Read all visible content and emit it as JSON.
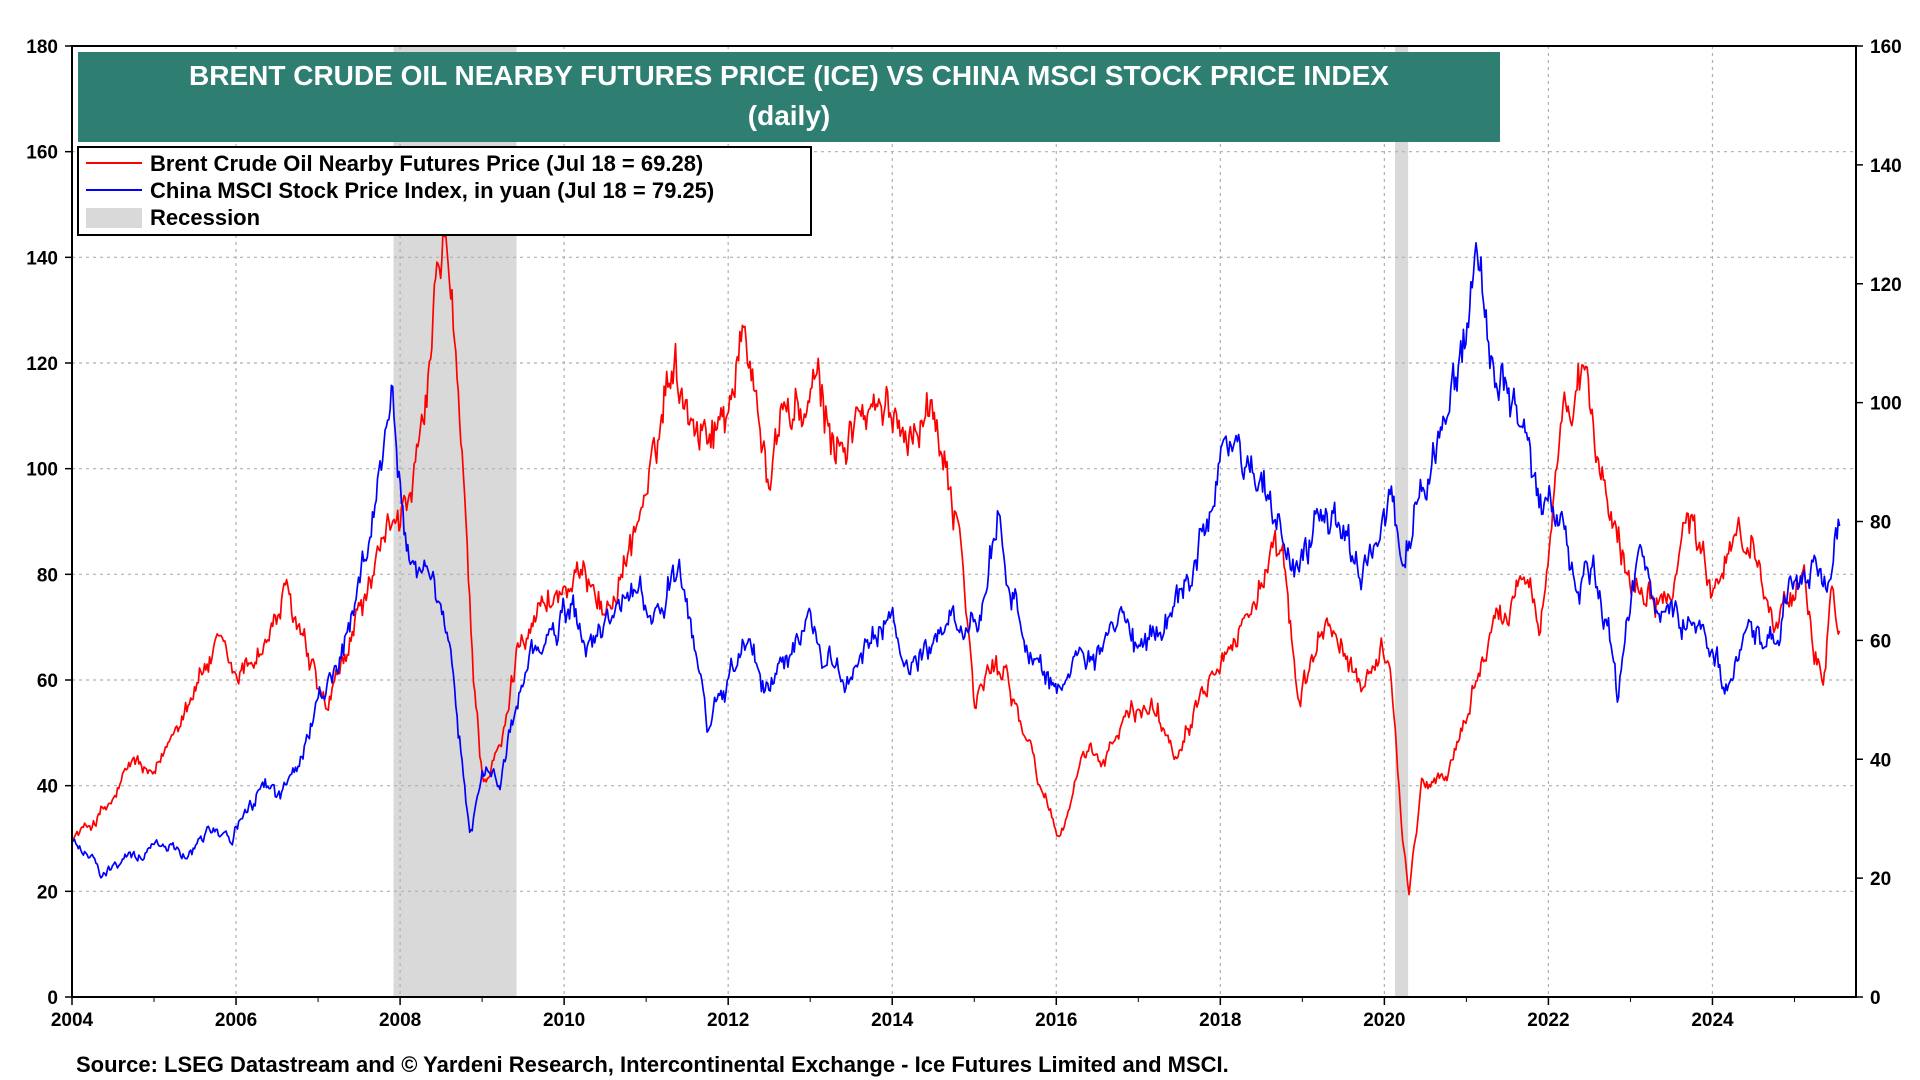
{
  "chart_data": {
    "type": "line",
    "title": "BRENT CRUDE OIL NEARBY FUTURES PRICE (ICE) VS CHINA MSCI STOCK PRICE INDEX",
    "subtitle": "(daily)",
    "source": "Source: LSEG Datastream and © Yardeni Research, Intercontinental Exchange - Ice Futures Limited and MSCI.",
    "x_ticks": [
      "2004",
      "2006",
      "2008",
      "2010",
      "2012",
      "2014",
      "2016",
      "2018",
      "2020",
      "2022",
      "2024"
    ],
    "xlim": [
      2004.0,
      2025.75
    ],
    "y_left": {
      "ylim": [
        0,
        180
      ],
      "ticks": [
        "0",
        "20",
        "40",
        "60",
        "80",
        "100",
        "120",
        "140",
        "160",
        "180"
      ]
    },
    "y_right": {
      "ylim": [
        0,
        160
      ],
      "ticks": [
        "0",
        "20",
        "40",
        "60",
        "80",
        "100",
        "120",
        "140",
        "160"
      ]
    },
    "grid": true,
    "legend": {
      "placement": "top-left",
      "entries": [
        "Brent Crude Oil Nearby Futures Price (Jul 18 = 69.28)",
        "China MSCI Stock Price Index, in yuan (Jul 18 = 79.25)",
        "Recession"
      ]
    },
    "colors": {
      "brent": "#ff0000",
      "china": "#0000ff",
      "recession": "#d9d9d9",
      "title_bg": "#2e7f72"
    },
    "recessions": [
      [
        2007.92,
        2009.42
      ],
      [
        2020.13,
        2020.29
      ]
    ],
    "series": [
      {
        "name": "Brent Crude Oil Nearby Futures Price (Jul 18 = 69.28)",
        "axis": "left",
        "points": [
          [
            2004.0,
            30
          ],
          [
            2004.25,
            33
          ],
          [
            2004.5,
            37
          ],
          [
            2004.75,
            45
          ],
          [
            2005.0,
            41
          ],
          [
            2005.3,
            53
          ],
          [
            2005.6,
            62
          ],
          [
            2005.8,
            66
          ],
          [
            2006.0,
            60
          ],
          [
            2006.4,
            68
          ],
          [
            2006.6,
            76
          ],
          [
            2006.75,
            70
          ],
          [
            2006.95,
            60
          ],
          [
            2007.1,
            54
          ],
          [
            2007.3,
            62
          ],
          [
            2007.5,
            73
          ],
          [
            2007.75,
            82
          ],
          [
            2007.95,
            93
          ],
          [
            2008.1,
            92
          ],
          [
            2008.3,
            108
          ],
          [
            2008.45,
            135
          ],
          [
            2008.55,
            145
          ],
          [
            2008.65,
            125
          ],
          [
            2008.8,
            90
          ],
          [
            2008.9,
            60
          ],
          [
            2009.0,
            42
          ],
          [
            2009.1,
            43
          ],
          [
            2009.25,
            48
          ],
          [
            2009.45,
            68
          ],
          [
            2009.6,
            72
          ],
          [
            2009.8,
            75
          ],
          [
            2010.0,
            77
          ],
          [
            2010.35,
            80
          ],
          [
            2010.5,
            72
          ],
          [
            2010.7,
            80
          ],
          [
            2010.95,
            93
          ],
          [
            2011.1,
            100
          ],
          [
            2011.3,
            122
          ],
          [
            2011.45,
            115
          ],
          [
            2011.65,
            108
          ],
          [
            2011.9,
            108
          ],
          [
            2012.2,
            125
          ],
          [
            2012.35,
            115
          ],
          [
            2012.5,
            95
          ],
          [
            2012.65,
            112
          ],
          [
            2012.9,
            110
          ],
          [
            2013.1,
            115
          ],
          [
            2013.3,
            103
          ],
          [
            2013.6,
            110
          ],
          [
            2013.9,
            110
          ],
          [
            2014.2,
            108
          ],
          [
            2014.45,
            112
          ],
          [
            2014.65,
            103
          ],
          [
            2014.85,
            85
          ],
          [
            2015.0,
            55
          ],
          [
            2015.2,
            62
          ],
          [
            2015.4,
            62
          ],
          [
            2015.6,
            50
          ],
          [
            2015.85,
            38
          ],
          [
            2016.05,
            30
          ],
          [
            2016.3,
            45
          ],
          [
            2016.6,
            45
          ],
          [
            2016.9,
            54
          ],
          [
            2017.2,
            55
          ],
          [
            2017.45,
            46
          ],
          [
            2017.75,
            58
          ],
          [
            2017.95,
            65
          ],
          [
            2018.2,
            68
          ],
          [
            2018.45,
            77
          ],
          [
            2018.75,
            84
          ],
          [
            2018.95,
            55
          ],
          [
            2019.1,
            62
          ],
          [
            2019.3,
            72
          ],
          [
            2019.55,
            62
          ],
          [
            2019.75,
            60
          ],
          [
            2020.0,
            67
          ],
          [
            2020.12,
            55
          ],
          [
            2020.22,
            30
          ],
          [
            2020.3,
            20
          ],
          [
            2020.45,
            40
          ],
          [
            2020.75,
            42
          ],
          [
            2020.95,
            50
          ],
          [
            2021.2,
            65
          ],
          [
            2021.5,
            74
          ],
          [
            2021.75,
            82
          ],
          [
            2021.9,
            72
          ],
          [
            2022.05,
            90
          ],
          [
            2022.18,
            115
          ],
          [
            2022.3,
            105
          ],
          [
            2022.45,
            120
          ],
          [
            2022.6,
            100
          ],
          [
            2022.8,
            92
          ],
          [
            2022.95,
            80
          ],
          [
            2023.2,
            78
          ],
          [
            2023.45,
            75
          ],
          [
            2023.7,
            92
          ],
          [
            2023.85,
            85
          ],
          [
            2024.0,
            78
          ],
          [
            2024.25,
            88
          ],
          [
            2024.5,
            85
          ],
          [
            2024.75,
            74
          ],
          [
            2024.95,
            73
          ],
          [
            2025.1,
            78
          ],
          [
            2025.25,
            65
          ],
          [
            2025.35,
            60
          ],
          [
            2025.45,
            78
          ],
          [
            2025.55,
            69.28
          ]
        ]
      },
      {
        "name": "China MSCI Stock Price Index, in yuan (Jul 18 = 79.25)",
        "axis": "right",
        "points": [
          [
            2004.0,
            26
          ],
          [
            2004.25,
            24
          ],
          [
            2004.35,
            20
          ],
          [
            2004.6,
            23
          ],
          [
            2004.85,
            24
          ],
          [
            2005.1,
            26
          ],
          [
            2005.4,
            24
          ],
          [
            2005.7,
            29
          ],
          [
            2005.95,
            27
          ],
          [
            2006.2,
            32
          ],
          [
            2006.35,
            36
          ],
          [
            2006.55,
            34
          ],
          [
            2006.8,
            40
          ],
          [
            2007.0,
            50
          ],
          [
            2007.2,
            54
          ],
          [
            2007.45,
            64
          ],
          [
            2007.65,
            80
          ],
          [
            2007.8,
            92
          ],
          [
            2007.9,
            103
          ],
          [
            2008.0,
            85
          ],
          [
            2008.15,
            70
          ],
          [
            2008.3,
            75
          ],
          [
            2008.45,
            65
          ],
          [
            2008.6,
            58
          ],
          [
            2008.75,
            40
          ],
          [
            2008.85,
            27
          ],
          [
            2009.0,
            38
          ],
          [
            2009.2,
            36
          ],
          [
            2009.4,
            48
          ],
          [
            2009.6,
            58
          ],
          [
            2009.85,
            60
          ],
          [
            2010.1,
            66
          ],
          [
            2010.3,
            58
          ],
          [
            2010.55,
            64
          ],
          [
            2010.85,
            68
          ],
          [
            2011.15,
            65
          ],
          [
            2011.4,
            70
          ],
          [
            2011.6,
            58
          ],
          [
            2011.75,
            45
          ],
          [
            2011.9,
            50
          ],
          [
            2012.2,
            60
          ],
          [
            2012.45,
            52
          ],
          [
            2012.7,
            57
          ],
          [
            2012.95,
            64
          ],
          [
            2013.2,
            58
          ],
          [
            2013.45,
            52
          ],
          [
            2013.75,
            60
          ],
          [
            2014.0,
            63
          ],
          [
            2014.2,
            55
          ],
          [
            2014.5,
            60
          ],
          [
            2014.75,
            63
          ],
          [
            2014.95,
            62
          ],
          [
            2015.15,
            70
          ],
          [
            2015.3,
            81
          ],
          [
            2015.45,
            70
          ],
          [
            2015.65,
            58
          ],
          [
            2015.8,
            56
          ],
          [
            2016.0,
            52
          ],
          [
            2016.2,
            55
          ],
          [
            2016.5,
            57
          ],
          [
            2016.8,
            63
          ],
          [
            2017.0,
            58
          ],
          [
            2017.3,
            62
          ],
          [
            2017.6,
            70
          ],
          [
            2017.85,
            82
          ],
          [
            2018.05,
            95
          ],
          [
            2018.3,
            90
          ],
          [
            2018.55,
            85
          ],
          [
            2018.75,
            78
          ],
          [
            2018.95,
            70
          ],
          [
            2019.2,
            82
          ],
          [
            2019.45,
            80
          ],
          [
            2019.7,
            72
          ],
          [
            2019.9,
            78
          ],
          [
            2020.1,
            84
          ],
          [
            2020.22,
            70
          ],
          [
            2020.4,
            82
          ],
          [
            2020.6,
            90
          ],
          [
            2020.8,
            100
          ],
          [
            2021.0,
            110
          ],
          [
            2021.12,
            125
          ],
          [
            2021.3,
            110
          ],
          [
            2021.55,
            102
          ],
          [
            2021.75,
            90
          ],
          [
            2021.95,
            82
          ],
          [
            2022.15,
            80
          ],
          [
            2022.35,
            68
          ],
          [
            2022.55,
            72
          ],
          [
            2022.75,
            60
          ],
          [
            2022.85,
            50
          ],
          [
            2022.95,
            62
          ],
          [
            2023.1,
            74
          ],
          [
            2023.35,
            66
          ],
          [
            2023.6,
            64
          ],
          [
            2023.85,
            62
          ],
          [
            2024.0,
            57
          ],
          [
            2024.15,
            53
          ],
          [
            2024.35,
            57
          ],
          [
            2024.55,
            62
          ],
          [
            2024.7,
            59
          ],
          [
            2024.8,
            62
          ],
          [
            2024.95,
            70
          ],
          [
            2025.1,
            68
          ],
          [
            2025.25,
            75
          ],
          [
            2025.35,
            67
          ],
          [
            2025.5,
            75
          ],
          [
            2025.55,
            79.25
          ]
        ]
      }
    ]
  }
}
